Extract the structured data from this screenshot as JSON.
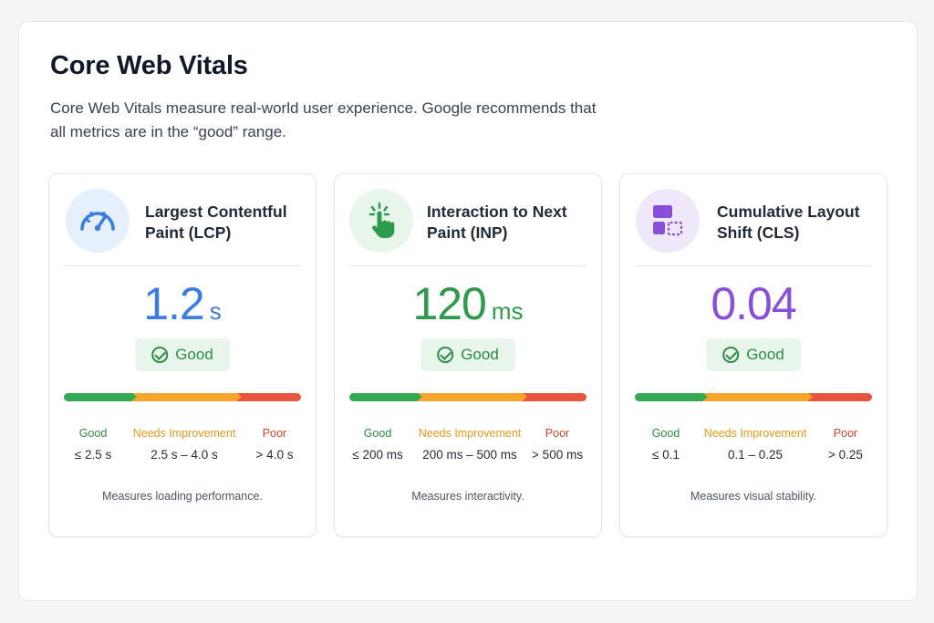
{
  "header": {
    "title": "Core Web Vitals",
    "description": "Core Web Vitals measure real-world user experience. Google recommends that all metrics are in the “good” range."
  },
  "cards": [
    {
      "icon": "speedometer-icon",
      "title": "Largest Contentful Paint (LCP)",
      "value": "1.2",
      "unit": "s",
      "color": "#3b7de0",
      "status": "Good",
      "thresholds": {
        "good_label": "Good",
        "good_value": "≤ 2.5 s",
        "ni_label": "Needs Improvement",
        "ni_value": "2.5 s – 4.0 s",
        "poor_label": "Poor",
        "poor_value": "> 4.0 s"
      },
      "footer": "Measures loading performance."
    },
    {
      "icon": "pointer-click-icon",
      "title": "Interaction to Next Paint (INP)",
      "value": "120",
      "unit": "ms",
      "color": "#2e9a4c",
      "status": "Good",
      "thresholds": {
        "good_label": "Good",
        "good_value": "≤ 200 ms",
        "ni_label": "Needs Improvement",
        "ni_value": "200 ms – 500 ms",
        "poor_label": "Poor",
        "poor_value": "> 500 ms"
      },
      "footer": "Measures interactivity."
    },
    {
      "icon": "layout-shift-icon",
      "title": "Cumulative Layout Shift (CLS)",
      "value": "0.04",
      "unit": "",
      "color": "#8a4fd8",
      "status": "Good",
      "thresholds": {
        "good_label": "Good",
        "good_value": "≤ 0.1",
        "ni_label": "Needs Improvement",
        "ni_value": "0.1 – 0.25",
        "poor_label": "Poor",
        "poor_value": "> 0.25"
      },
      "footer": "Measures visual stability."
    }
  ]
}
